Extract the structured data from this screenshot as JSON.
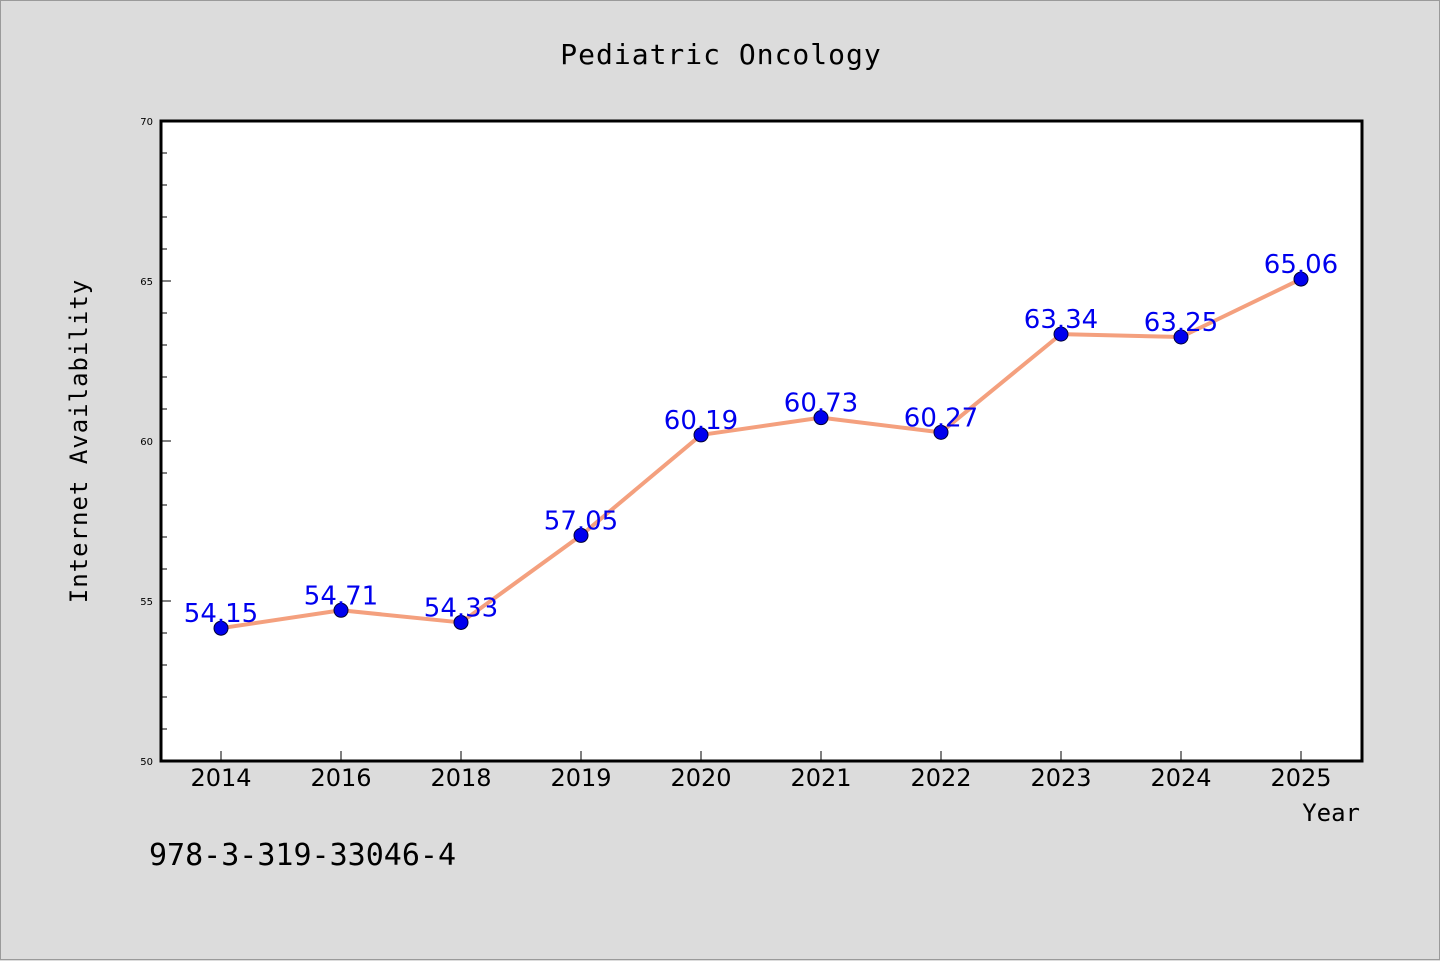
{
  "chart_data": {
    "type": "line",
    "title": "Pediatric Oncology",
    "xlabel": "Year",
    "ylabel": "Internet Availability",
    "categories": [
      "2014",
      "2016",
      "2018",
      "2019",
      "2020",
      "2021",
      "2022",
      "2023",
      "2024",
      "2025"
    ],
    "series": [
      {
        "values": [
          54.15,
          54.71,
          54.33,
          57.05,
          60.19,
          60.73,
          60.27,
          63.34,
          63.25,
          65.06
        ],
        "line_color": "#f4a07e",
        "marker_color": "#0000ee"
      }
    ],
    "data_labels": [
      "54.15",
      "54.71",
      "54.33",
      "57.05",
      "60.19",
      "60.73",
      "60.27",
      "63.34",
      "63.25",
      "65.06"
    ],
    "ylim": [
      50,
      70
    ],
    "yticks": [
      "50",
      "55",
      "60",
      "65",
      "70"
    ],
    "grid": false,
    "legend": "none"
  },
  "footer": {
    "isbn": "978-3-319-33046-4"
  }
}
